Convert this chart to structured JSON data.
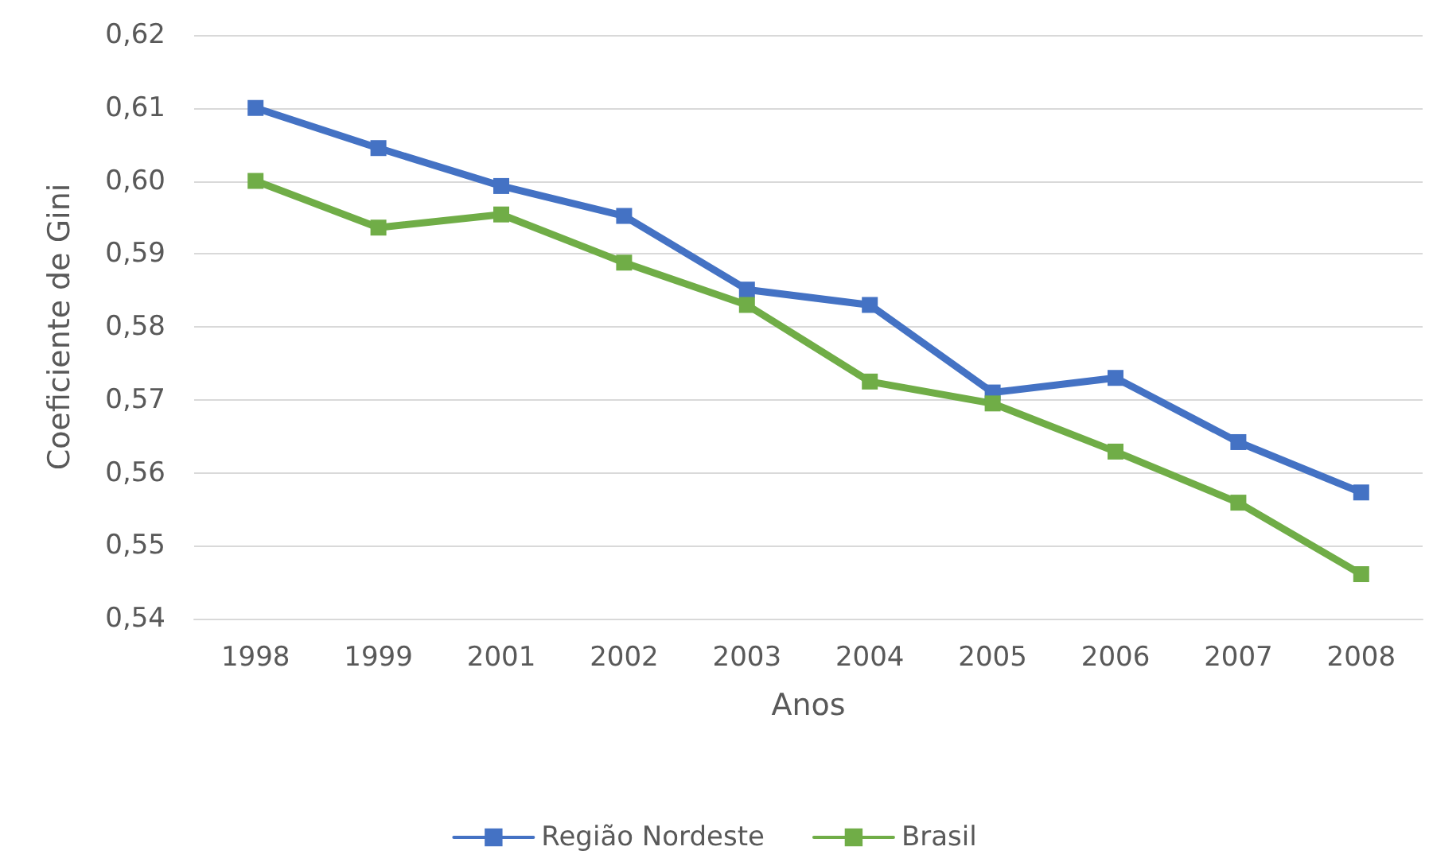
{
  "chart_data": {
    "type": "line",
    "xlabel": "Anos",
    "ylabel": "Coeficiente de Gini",
    "categories": [
      "1998",
      "1999",
      "2001",
      "2002",
      "2003",
      "2004",
      "2005",
      "2006",
      "2007",
      "2008"
    ],
    "series": [
      {
        "name": "Região Nordeste",
        "color": "#4472c4",
        "values": [
          0.61,
          0.6045,
          0.5993,
          0.5952,
          0.5851,
          0.583,
          0.571,
          0.573,
          0.5642,
          0.5573
        ]
      },
      {
        "name": "Brasil",
        "color": "#70ad47",
        "values": [
          0.6,
          0.5936,
          0.5954,
          0.5888,
          0.583,
          0.5725,
          0.5695,
          0.5629,
          0.5559,
          0.5461
        ]
      }
    ],
    "ylim": [
      0.54,
      0.62
    ],
    "yticks": [
      {
        "value": 0.54,
        "label": "0,54"
      },
      {
        "value": 0.55,
        "label": "0,55"
      },
      {
        "value": 0.56,
        "label": "0,56"
      },
      {
        "value": 0.57,
        "label": "0,57"
      },
      {
        "value": 0.58,
        "label": "0,58"
      },
      {
        "value": 0.59,
        "label": "0,59"
      },
      {
        "value": 0.6,
        "label": "0,60"
      },
      {
        "value": 0.61,
        "label": "0,61"
      },
      {
        "value": 0.62,
        "label": "0,62"
      }
    ],
    "grid": "y",
    "legend": "bottom",
    "marker": "square",
    "line_style": "solid"
  }
}
